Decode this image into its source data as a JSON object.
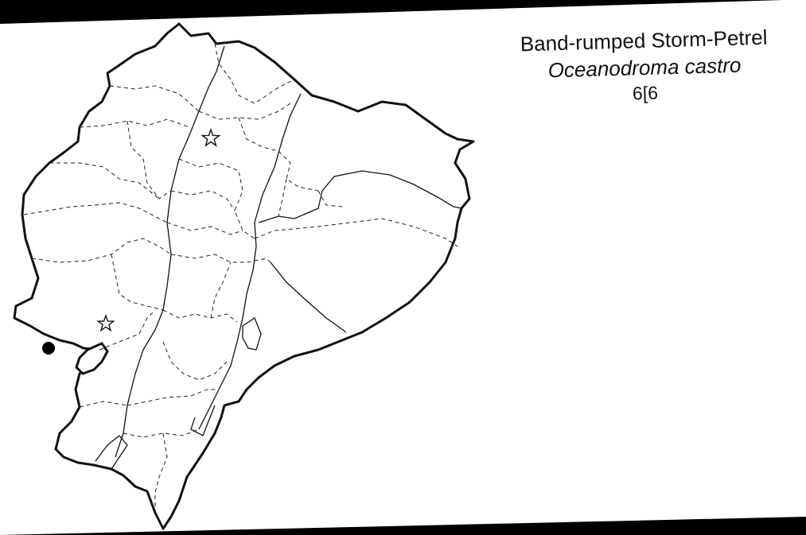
{
  "map": {
    "common_name": "Band-rumped Storm-Petrel",
    "scientific_name": "Oceanodroma castro",
    "code": "6[6",
    "colors": {
      "background": "#000000",
      "paper": "#ffffff",
      "ink": "#111111"
    },
    "markers": [
      {
        "type": "star-icon",
        "meaning": "record"
      },
      {
        "type": "star-icon",
        "meaning": "record"
      },
      {
        "type": "dot-icon",
        "meaning": "record"
      }
    ]
  }
}
